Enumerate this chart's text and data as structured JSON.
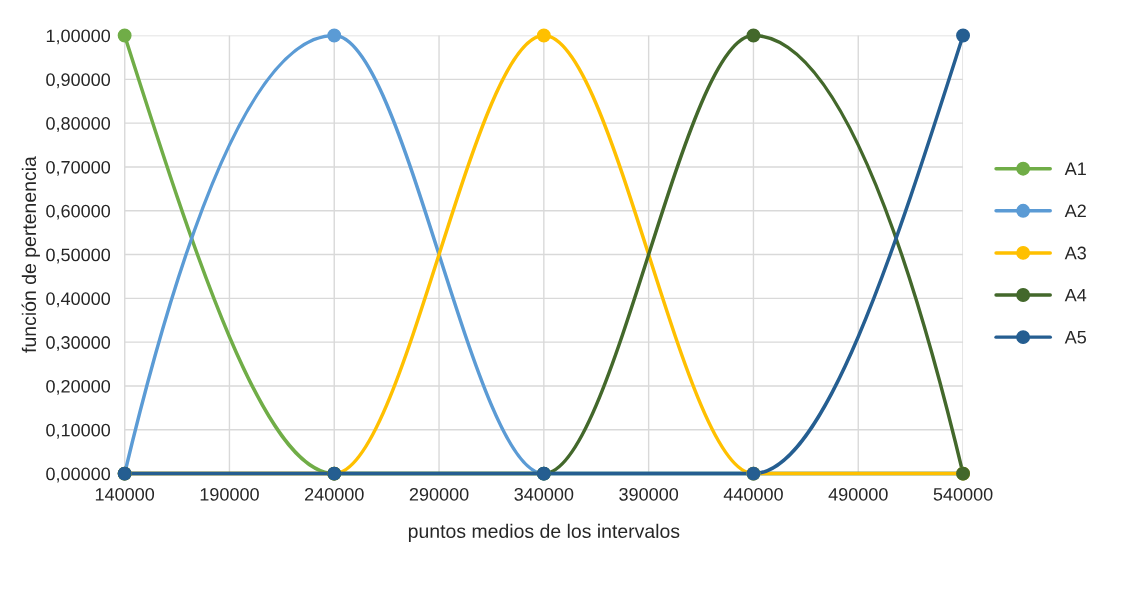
{
  "chart_data": {
    "type": "line",
    "xlabel": "puntos medios de los intervalos",
    "ylabel": "función de pertenencia",
    "x": [
      140000,
      240000,
      340000,
      440000,
      540000
    ],
    "series": [
      {
        "name": "A1",
        "color": "#70ad47",
        "values": [
          1,
          0,
          0,
          0,
          0
        ]
      },
      {
        "name": "A2",
        "color": "#5b9bd5",
        "values": [
          0,
          1,
          0,
          0,
          0
        ]
      },
      {
        "name": "A3",
        "color": "#ffc000",
        "values": [
          0,
          0,
          1,
          0,
          0
        ]
      },
      {
        "name": "A4",
        "color": "#43682b",
        "values": [
          0,
          0,
          0,
          1,
          0
        ]
      },
      {
        "name": "A5",
        "color": "#255e91",
        "values": [
          0,
          0,
          0,
          0,
          1
        ]
      }
    ],
    "xlim": [
      140000,
      540000
    ],
    "xticks": [
      140000,
      190000,
      240000,
      290000,
      340000,
      390000,
      440000,
      490000,
      540000
    ],
    "ylim": [
      0,
      1
    ],
    "yticks": [
      {
        "value": 0,
        "label": "0,00000"
      },
      {
        "value": 0.1,
        "label": "0,10000"
      },
      {
        "value": 0.2,
        "label": "0,20000"
      },
      {
        "value": 0.3,
        "label": "0,30000"
      },
      {
        "value": 0.4,
        "label": "0,40000"
      },
      {
        "value": 0.5,
        "label": "0,50000"
      },
      {
        "value": 0.6,
        "label": "0,60000"
      },
      {
        "value": 0.7,
        "label": "0,70000"
      },
      {
        "value": 0.8,
        "label": "0,80000"
      },
      {
        "value": 0.9,
        "label": "0,90000"
      },
      {
        "value": 1,
        "label": "1,00000"
      }
    ],
    "grid": true,
    "legend": "right",
    "marker": "circle",
    "line_style": "solid"
  }
}
